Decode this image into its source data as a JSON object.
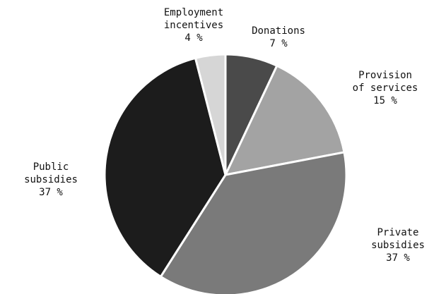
{
  "chart_data": {
    "type": "pie",
    "start_angle_deg": 0,
    "direction": "clockwise",
    "slices": [
      {
        "label": [
          "Donations"
        ],
        "value": 7,
        "value_label": "7 %",
        "color": "#4a4a4a"
      },
      {
        "label": [
          "Provision",
          "of services"
        ],
        "value": 15,
        "value_label": "15 %",
        "color": "#a3a3a3"
      },
      {
        "label": [
          "Private",
          "subsidies"
        ],
        "value": 37,
        "value_label": "37 %",
        "color": "#7a7a7a"
      },
      {
        "label": [
          "Public",
          "subsidies"
        ],
        "value": 37,
        "value_label": "37 %",
        "color": "#1c1c1c"
      },
      {
        "label": [
          "Employment",
          "incentives"
        ],
        "value": 4,
        "value_label": "4 %",
        "color": "#d6d6d6"
      }
    ]
  }
}
